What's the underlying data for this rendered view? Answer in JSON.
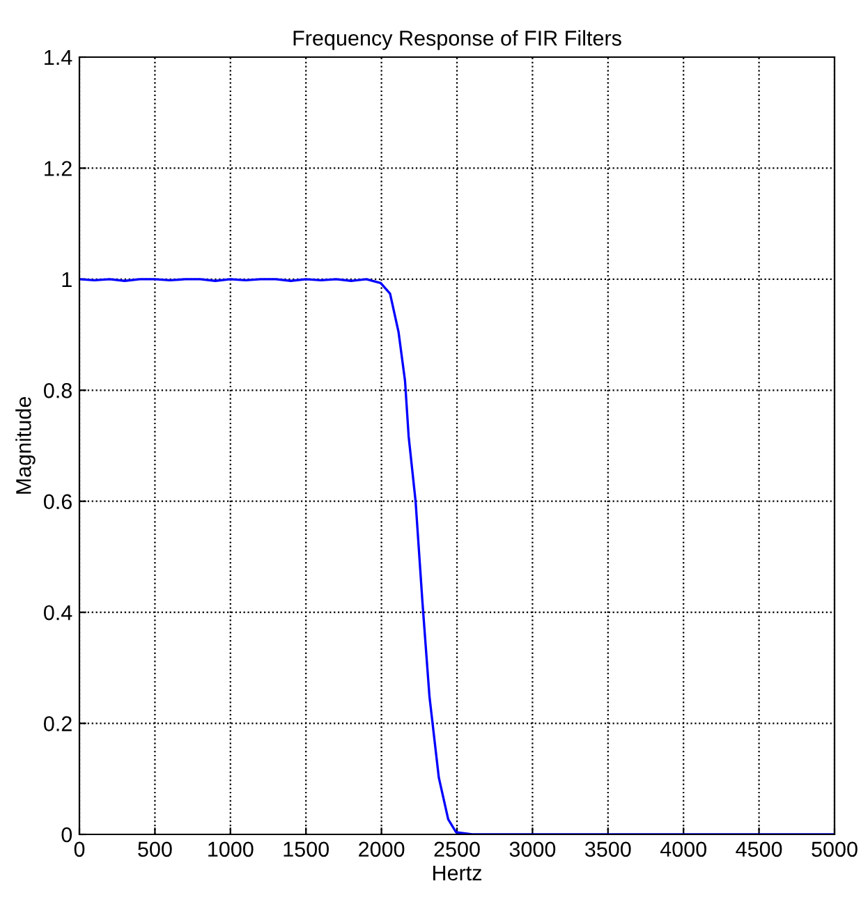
{
  "chart_data": {
    "type": "line",
    "title": "Frequency Response of FIR Filters",
    "xlabel": "Hertz",
    "ylabel": "Magnitude",
    "x": [
      0,
      100,
      200,
      300,
      400,
      500,
      600,
      700,
      800,
      900,
      1000,
      1100,
      1200,
      1300,
      1400,
      1500,
      1600,
      1700,
      1800,
      1900,
      1995,
      2057,
      2113,
      2156,
      2180,
      2226,
      2272,
      2318,
      2380,
      2442,
      2494,
      2600,
      3000,
      3500,
      4000,
      4500,
      5000
    ],
    "series": [
      {
        "color": "#0000ff",
        "values": [
          1.0,
          0.998,
          1.0,
          0.997,
          1.0,
          1.0,
          0.998,
          1.0,
          1.0,
          0.997,
          1.0,
          0.998,
          1.0,
          1.0,
          0.997,
          1.0,
          0.998,
          1.0,
          0.997,
          1.0,
          0.993,
          0.974,
          0.905,
          0.817,
          0.717,
          0.6,
          0.416,
          0.248,
          0.102,
          0.027,
          0.004,
          0,
          0,
          0,
          0,
          0,
          0
        ]
      }
    ],
    "xlim": [
      0,
      5000
    ],
    "xticks": [
      0,
      500,
      1000,
      1500,
      2000,
      2500,
      3000,
      3500,
      4000,
      4500,
      5000
    ],
    "ylim": [
      0,
      1.4
    ],
    "yticks": [
      0,
      0.2,
      0.4,
      0.6,
      0.8,
      1,
      1.2,
      1.4
    ],
    "grid": true,
    "line_style": "solid"
  }
}
